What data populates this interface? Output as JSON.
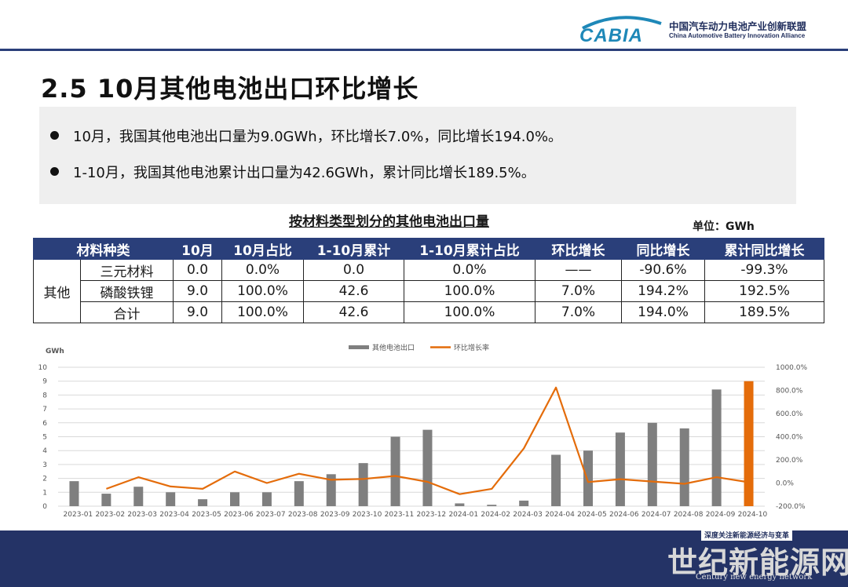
{
  "header": {
    "logo_text": "CABIA",
    "org_cn": "中国汽车动力电池产业创新联盟",
    "org_en": "China Automotive Battery Innovation Alliance",
    "brand_color": "#2a3f7a",
    "logo_color": "#1e88b8"
  },
  "title": "2.5 10月其他电池出口环比增长",
  "bullets": [
    "10月，我国其他电池出口量为9.0GWh，环比增长7.0%，同比增长194.0%。",
    "1-10月，我国其他电池累计出口量为42.6GWh，累计同比增长189.5%。"
  ],
  "table": {
    "title": "按材料类型划分的其他电池出口量",
    "unit": "单位：GWh",
    "headers": [
      "材料种类",
      "10月",
      "10月占比",
      "1-10月累计",
      "1-10月累计占比",
      "环比增长",
      "同比增长",
      "累计同比增长"
    ],
    "group_label": "其他",
    "rows": [
      [
        "三元材料",
        "0.0",
        "0.0%",
        "0.0",
        "0.0%",
        "——",
        "-90.6%",
        "-99.3%"
      ],
      [
        "磷酸铁锂",
        "9.0",
        "100.0%",
        "42.6",
        "100.0%",
        "7.0%",
        "194.2%",
        "192.5%"
      ],
      [
        "合计",
        "9.0",
        "100.0%",
        "42.6",
        "100.0%",
        "7.0%",
        "194.0%",
        "189.5%"
      ]
    ]
  },
  "chart_data": {
    "type": "bar",
    "ylabel": "GWh",
    "categories": [
      "2023-01",
      "2023-02",
      "2023-03",
      "2023-04",
      "2023-05",
      "2023-06",
      "2023-07",
      "2023-08",
      "2023-09",
      "2023-10",
      "2023-11",
      "2023-12",
      "2024-01",
      "2024-02",
      "2024-03",
      "2024-04",
      "2024-05",
      "2024-06",
      "2024-07",
      "2024-08",
      "2024-09",
      "2024-10"
    ],
    "ylim": [
      0,
      10
    ],
    "y_ticks": [
      "0",
      "1",
      "2",
      "3",
      "4",
      "5",
      "6",
      "7",
      "8",
      "9",
      "10"
    ],
    "y2lim": [
      -200,
      1000
    ],
    "y2_ticks": [
      "-200.0%",
      "0.0%",
      "200.0%",
      "400.0%",
      "600.0%",
      "800.0%",
      "1000.0%"
    ],
    "legend_position": "top-center",
    "series": [
      {
        "name": "其他电池出口",
        "type": "bar",
        "color": "#7f7f7f",
        "highlight_color": "#e46c0a",
        "values": [
          1.8,
          0.9,
          1.4,
          1.0,
          0.5,
          1.0,
          1.0,
          1.8,
          2.3,
          3.1,
          5.0,
          5.5,
          0.2,
          0.1,
          0.4,
          3.7,
          4.0,
          5.3,
          6.0,
          5.6,
          8.4,
          9.0
        ]
      },
      {
        "name": "环比增长率",
        "type": "line",
        "color": "#e46c0a",
        "axis": "right",
        "values": [
          null,
          -50,
          50,
          -30,
          -50,
          100,
          0,
          80,
          28,
          35,
          61,
          10,
          -96,
          -50,
          300,
          825,
          8,
          33,
          13,
          -7,
          50,
          7
        ]
      }
    ]
  },
  "footer": {
    "tag": "深度关注新能源经济与变革",
    "watermark_cn": "世纪新能源网",
    "watermark_en": "Century new energy network"
  }
}
